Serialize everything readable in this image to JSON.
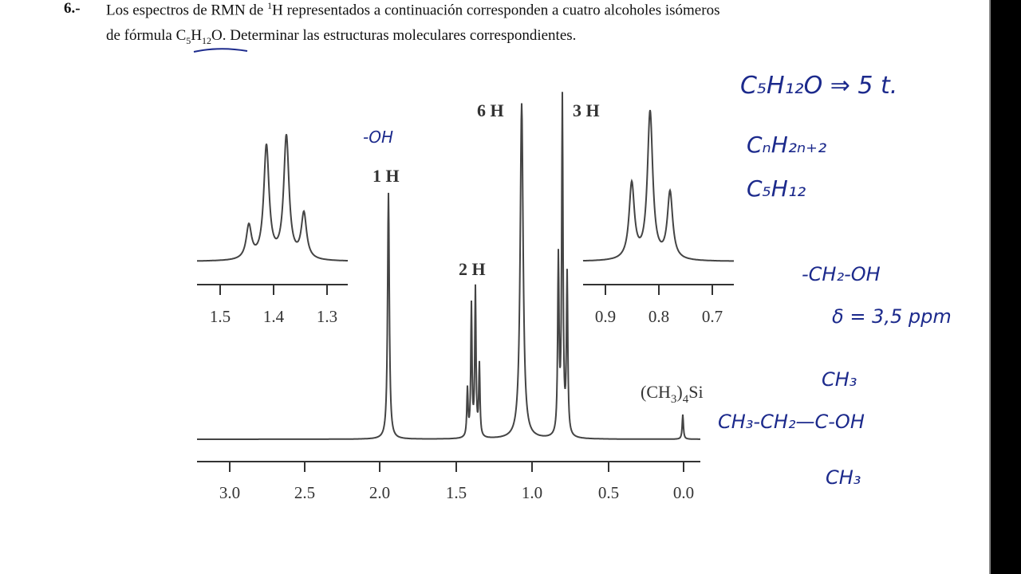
{
  "problem": {
    "number": "6.-",
    "line1": [
      "Los espectros de RMN de ",
      "1",
      "H representados a continuación corresponden a cuatro alcoholes isómeros"
    ],
    "line2": [
      "de fórmula C",
      "5",
      "H",
      "12",
      "O. Determinar las estructuras moleculares correspondientes."
    ]
  },
  "spectrum": {
    "axis_ticks": [
      "3.0",
      "2.5",
      "2.0",
      "1.5",
      "1.0",
      "0.5",
      "0.0"
    ],
    "left_inset_ticks": [
      "1.5",
      "1.4",
      "1.3"
    ],
    "right_inset_ticks": [
      "0.9",
      "0.8",
      "0.7"
    ],
    "peak_labels": [
      "6 H",
      "3 H",
      "1 H",
      "2 H"
    ],
    "reference": [
      "(CH",
      "3",
      ")",
      "4",
      "Si"
    ]
  },
  "notes": {
    "oh": "-OH",
    "formula": "C₅H₁₂O ⇒ 5 t.",
    "general": "CₙH₂ₙ₊₂",
    "alkane": "C₅H₁₂",
    "group": "-CH₂-OH",
    "shift": "δ = 3,5 ppm",
    "structure_top": "CH₃",
    "structure_main": "CH₃-CH₂—C-OH",
    "structure_bottom": "CH₃"
  }
}
